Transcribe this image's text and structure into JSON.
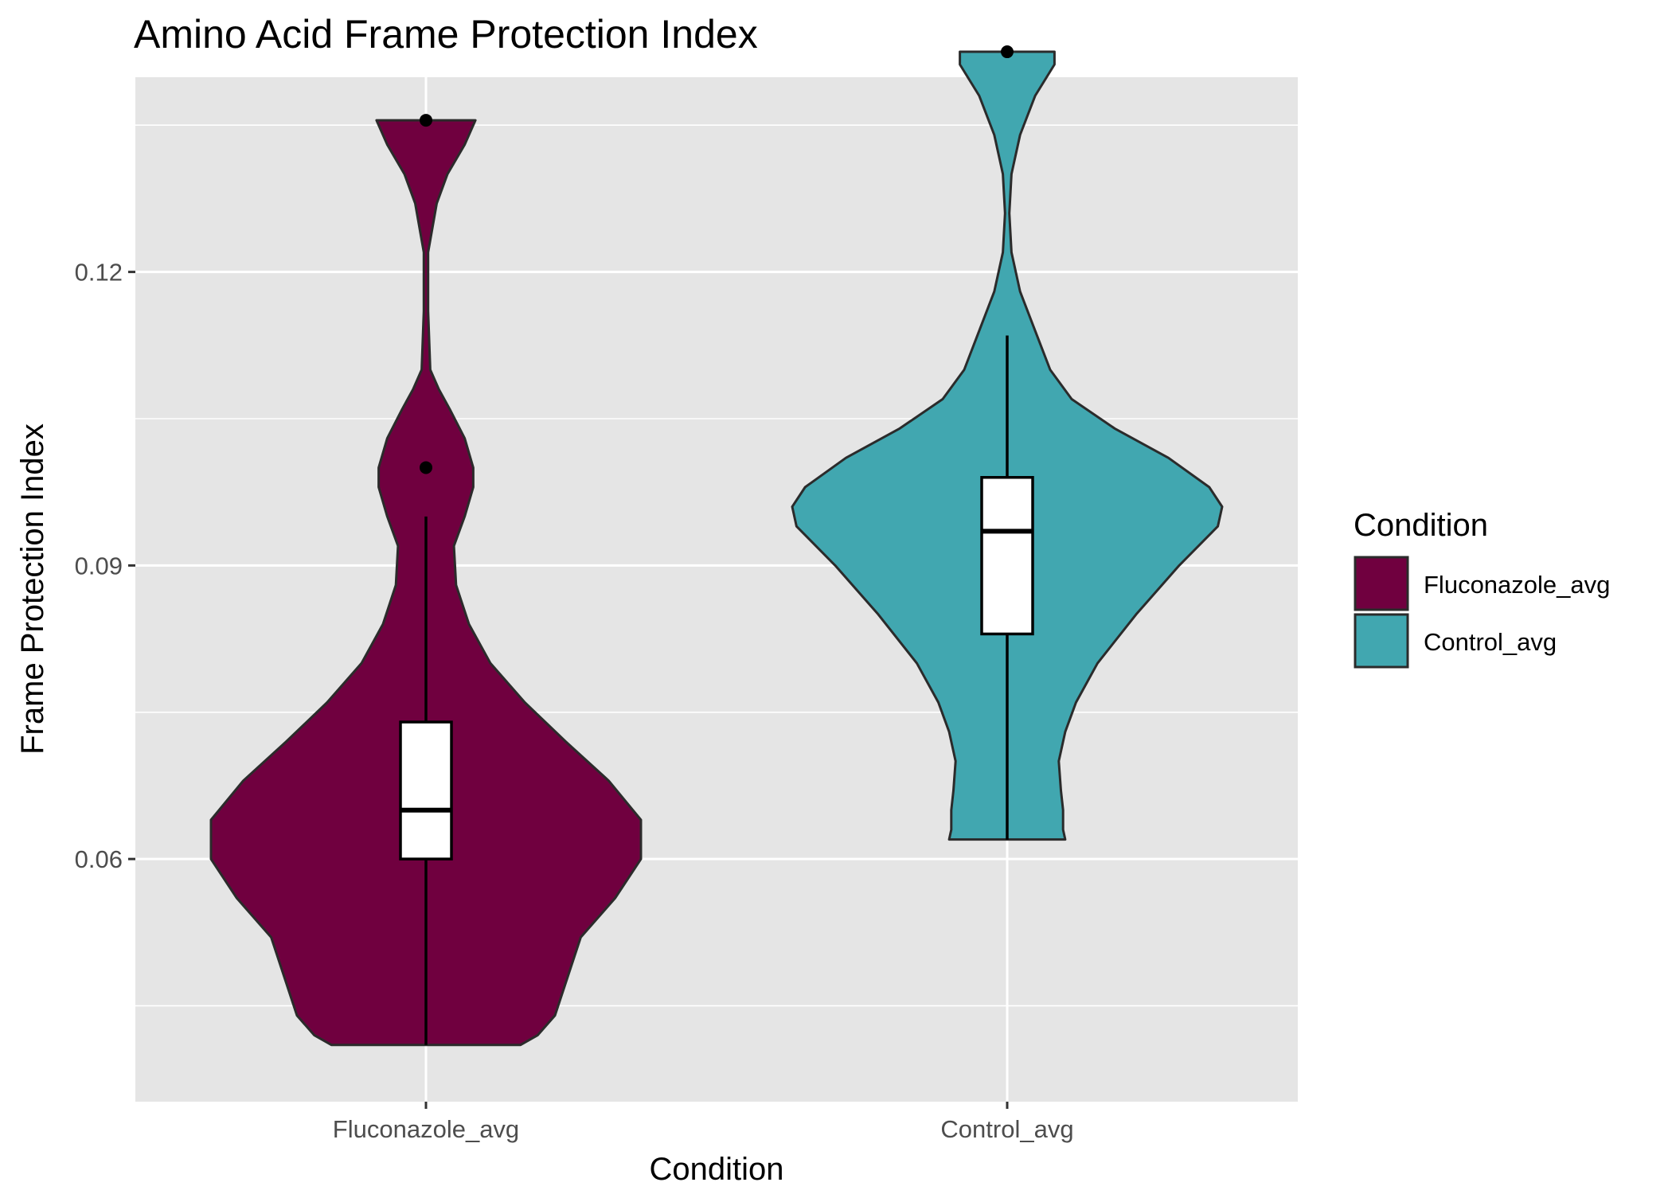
{
  "chart_data": {
    "type": "violin",
    "title": "Amino Acid Frame Protection Index",
    "xlabel": "Condition",
    "ylabel": "Frame Protection Index",
    "categories": [
      "Fluconazole_avg",
      "Control_avg"
    ],
    "ylim": [
      0.0352,
      0.1399
    ],
    "yticks": [
      0.06,
      0.09,
      0.12
    ],
    "ytick_labels": [
      "0.06",
      "0.09",
      "0.12"
    ],
    "grid": true,
    "legend": {
      "title": "Condition",
      "position": "right",
      "entries": [
        "Fluconazole_avg",
        "Control_avg"
      ]
    },
    "series": [
      {
        "name": "Fluconazole_avg",
        "color": "#70003f",
        "density": [
          [
            0.041,
            0.44
          ],
          [
            0.042,
            0.52
          ],
          [
            0.044,
            0.6
          ],
          [
            0.048,
            0.66
          ],
          [
            0.052,
            0.72
          ],
          [
            0.056,
            0.88
          ],
          [
            0.06,
            1.0
          ],
          [
            0.064,
            1.0
          ],
          [
            0.068,
            0.85
          ],
          [
            0.072,
            0.65
          ],
          [
            0.076,
            0.46
          ],
          [
            0.08,
            0.3
          ],
          [
            0.084,
            0.2
          ],
          [
            0.088,
            0.14
          ],
          [
            0.092,
            0.13
          ],
          [
            0.095,
            0.18
          ],
          [
            0.098,
            0.22
          ],
          [
            0.1,
            0.22
          ],
          [
            0.103,
            0.18
          ],
          [
            0.106,
            0.11
          ],
          [
            0.108,
            0.06
          ],
          [
            0.11,
            0.02
          ],
          [
            0.116,
            0.01
          ],
          [
            0.122,
            0.01
          ],
          [
            0.127,
            0.05
          ],
          [
            0.13,
            0.1
          ],
          [
            0.133,
            0.18
          ],
          [
            0.1355,
            0.23
          ]
        ],
        "box": {
          "q1": 0.06,
          "median": 0.065,
          "q3": 0.074,
          "whisker_low": 0.041,
          "whisker_high": 0.095
        },
        "outliers": [
          0.1,
          0.1355
        ]
      },
      {
        "name": "Control_avg",
        "color": "#41a7b0",
        "density": [
          [
            0.062,
            0.27
          ],
          [
            0.063,
            0.26
          ],
          [
            0.065,
            0.26
          ],
          [
            0.067,
            0.25
          ],
          [
            0.07,
            0.24
          ],
          [
            0.073,
            0.27
          ],
          [
            0.076,
            0.32
          ],
          [
            0.08,
            0.42
          ],
          [
            0.085,
            0.6
          ],
          [
            0.09,
            0.8
          ],
          [
            0.094,
            0.98
          ],
          [
            0.096,
            1.0
          ],
          [
            0.098,
            0.94
          ],
          [
            0.101,
            0.75
          ],
          [
            0.104,
            0.5
          ],
          [
            0.107,
            0.3
          ],
          [
            0.11,
            0.2
          ],
          [
            0.114,
            0.13
          ],
          [
            0.118,
            0.06
          ],
          [
            0.122,
            0.02
          ],
          [
            0.126,
            0.01
          ],
          [
            0.13,
            0.02
          ],
          [
            0.134,
            0.06
          ],
          [
            0.138,
            0.13
          ],
          [
            0.1412,
            0.22
          ],
          [
            0.1425,
            0.22
          ]
        ],
        "box": {
          "q1": 0.083,
          "median": 0.0935,
          "q3": 0.099,
          "whisker_low": 0.062,
          "whisker_high": 0.1135
        },
        "outliers": [
          0.1425
        ]
      }
    ]
  }
}
